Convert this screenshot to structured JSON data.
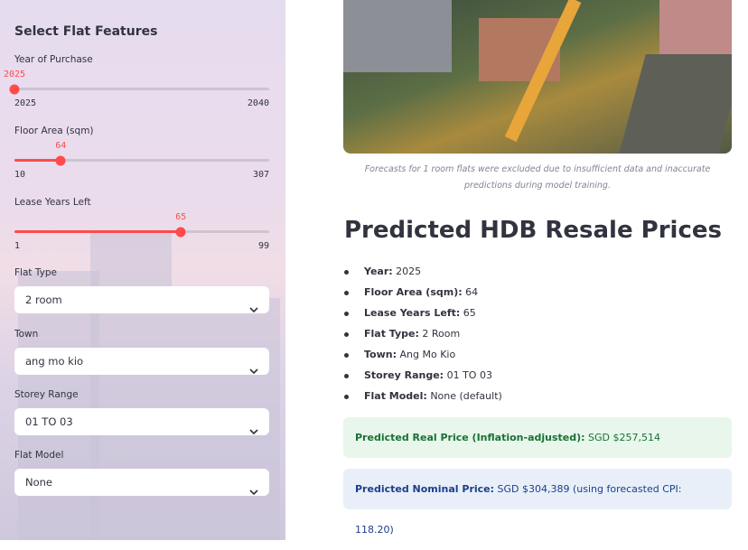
{
  "sidebar": {
    "title": "Select Flat Features",
    "sliders": [
      {
        "label": "Year of Purchase",
        "value": 2025,
        "min": 2025,
        "max": 2040
      },
      {
        "label": "Floor Area (sqm)",
        "value": 64,
        "min": 10,
        "max": 307
      },
      {
        "label": "Lease Years Left",
        "value": 65,
        "min": 1,
        "max": 99
      }
    ],
    "selects": [
      {
        "label": "Flat Type",
        "value": "2 room"
      },
      {
        "label": "Town",
        "value": "ang mo kio"
      },
      {
        "label": "Storey Range",
        "value": "01 TO 03"
      },
      {
        "label": "Flat Model",
        "value": "None"
      }
    ]
  },
  "main": {
    "caption": "Forecasts for 1 room flats were excluded due to insufficient data and inaccurate predictions during model training.",
    "heading": "Predicted HDB Resale Prices",
    "details": [
      {
        "label": "Year:",
        "value": "2025"
      },
      {
        "label": "Floor Area (sqm):",
        "value": "64"
      },
      {
        "label": "Lease Years Left:",
        "value": "65"
      },
      {
        "label": "Flat Type:",
        "value": "2 Room"
      },
      {
        "label": "Town:",
        "value": "Ang Mo Kio"
      },
      {
        "label": "Storey Range:",
        "value": "01 TO 03"
      },
      {
        "label": "Flat Model:",
        "value": "None (default)"
      }
    ],
    "results": [
      {
        "label": "Predicted Real Price (Inflation-adjusted):",
        "text": "SGD $257,514"
      },
      {
        "label": "Predicted Nominal Price:",
        "text": "SGD $304,389 (using forecasted CPI: 118.20)"
      }
    ]
  }
}
